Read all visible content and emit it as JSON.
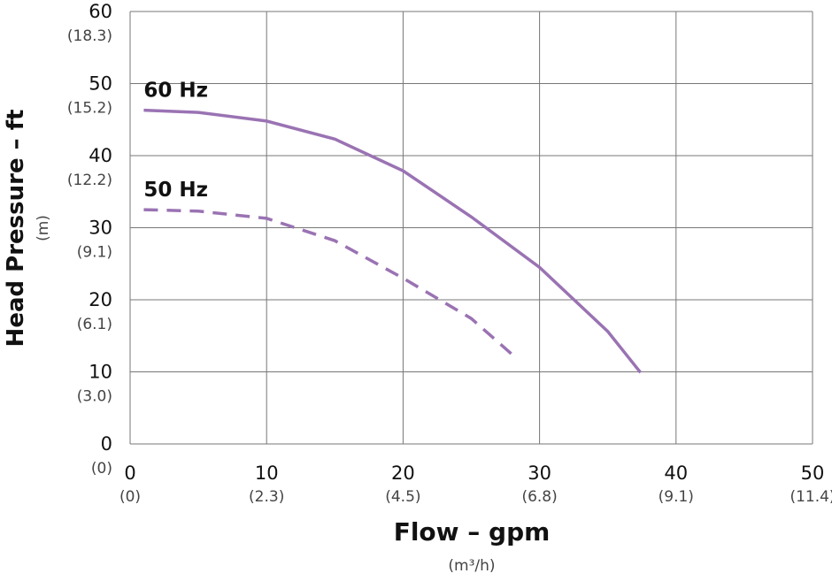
{
  "chart_data": {
    "type": "line",
    "x_axis_label": "Flow – gpm",
    "x_axis_sublabel": "(m³/h)",
    "y_axis_label": "Head Pressure – ft",
    "y_axis_sublabel": "(m)",
    "xlim": [
      0,
      50
    ],
    "xticks": [
      0,
      10,
      20,
      30,
      40,
      50
    ],
    "xtick_sublabels": [
      "(0)",
      "(2.3)",
      "(4.5)",
      "(6.8)",
      "(9.1)",
      "(11.4)"
    ],
    "ylim": [
      0,
      60
    ],
    "yticks": [
      0,
      10,
      20,
      30,
      40,
      50,
      60
    ],
    "ytick_sublabels": [
      "(0)",
      "(3.0)",
      "(6.1)",
      "(9.1)",
      "(12.2)",
      "(15.2)",
      "(18.3)"
    ],
    "grid": true,
    "series": [
      {
        "name": "60 Hz",
        "color": "#9a73b3",
        "dashed": false,
        "x": [
          1,
          5,
          10,
          15,
          20,
          25,
          30,
          35,
          37.4
        ],
        "values": [
          46.3,
          46,
          44.8,
          42.3,
          37.9,
          31.5,
          24.5,
          15.6,
          9.9
        ]
      },
      {
        "name": "50 Hz",
        "color": "#9a73b3",
        "dashed": true,
        "x": [
          1,
          5,
          10,
          15,
          20,
          25,
          28.3
        ],
        "values": [
          32.5,
          32.3,
          31.3,
          28.2,
          23,
          17.4,
          11.9
        ]
      }
    ]
  }
}
